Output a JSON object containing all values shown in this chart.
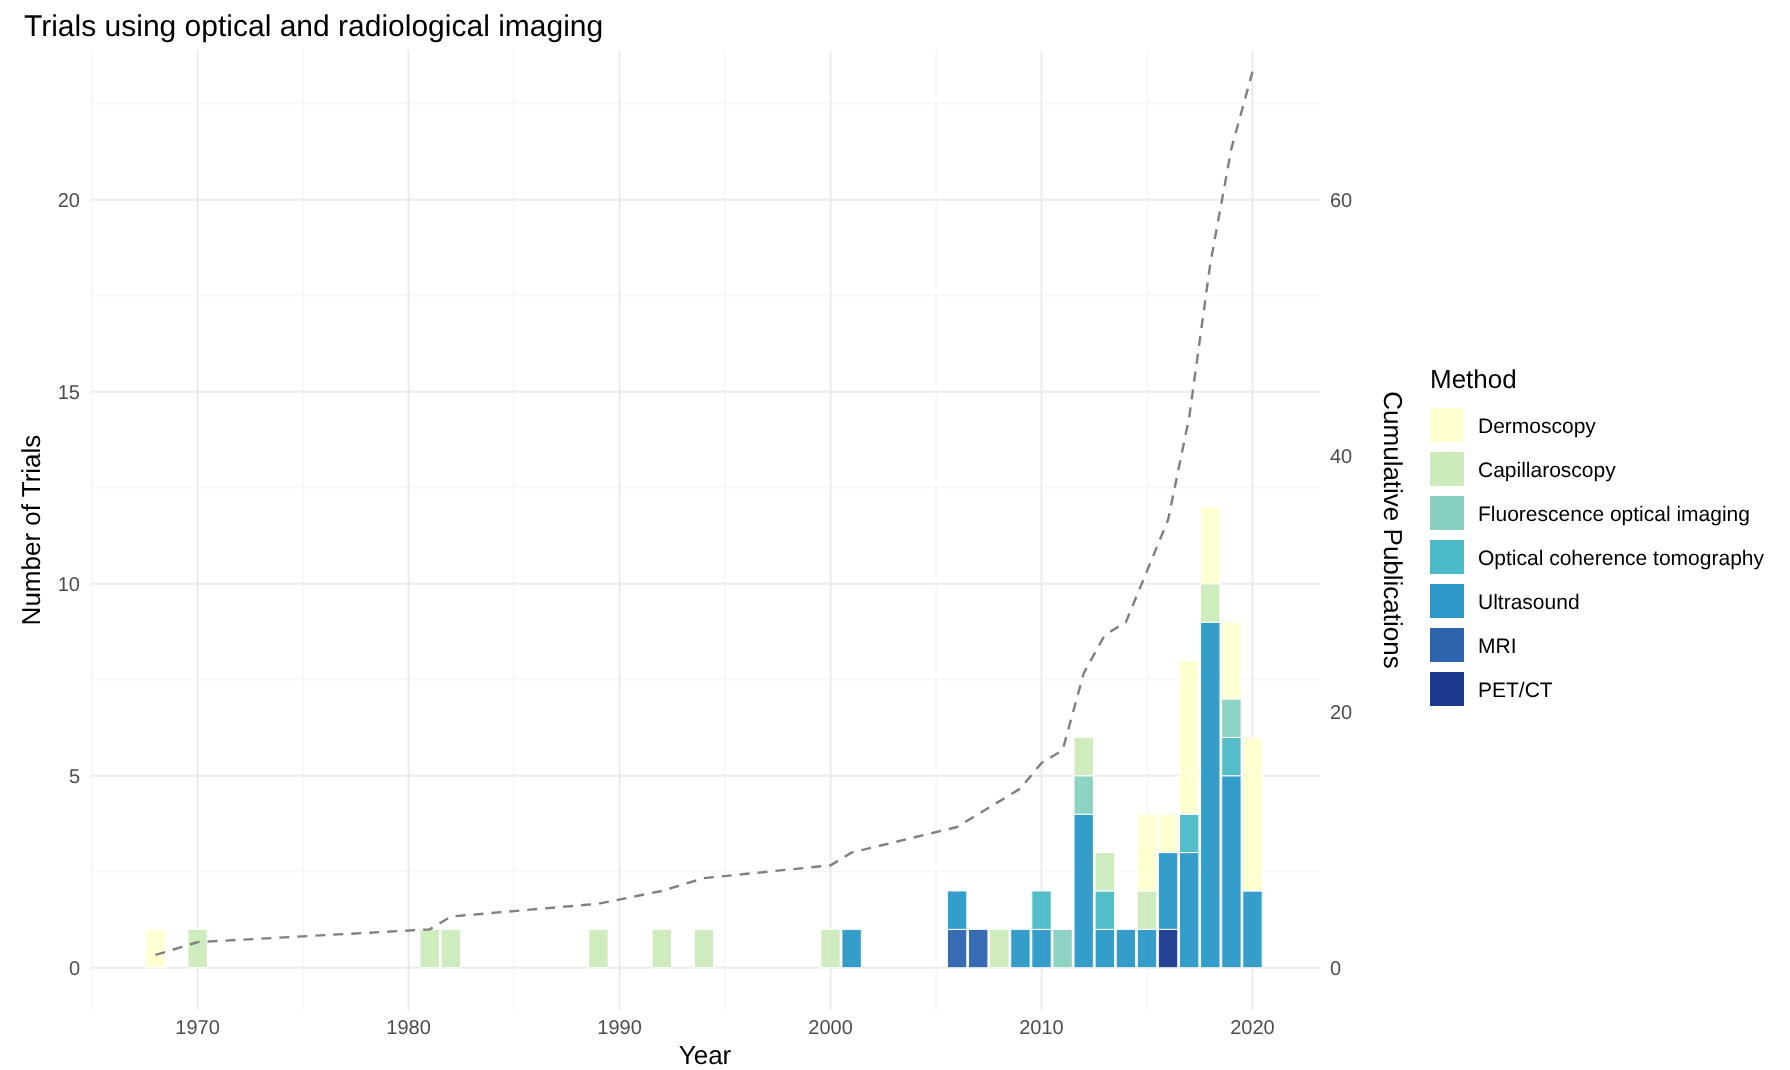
{
  "chart_data": {
    "type": "bar",
    "stacked": true,
    "title": "Trials using optical and radiological imaging",
    "xlabel": "Year",
    "ylabel": "Number of Trials",
    "y2label": "Cumulative Publications",
    "legend_title": "Method",
    "legend": "right",
    "grid": true,
    "x": [
      1968,
      1970,
      1981,
      1982,
      1989,
      1992,
      1994,
      2000,
      2001,
      2006,
      2007,
      2008,
      2009,
      2010,
      2011,
      2012,
      2013,
      2014,
      2015,
      2016,
      2017,
      2018,
      2019,
      2020
    ],
    "xlim": [
      1964.9,
      2023.2
    ],
    "xticks": [
      1970,
      1980,
      1990,
      2000,
      2010,
      2020
    ],
    "ylim": [
      -1.1,
      23.9
    ],
    "yticks": [
      0,
      5,
      10,
      15,
      20
    ],
    "y2lim": [
      -3.3,
      71.7
    ],
    "y2ticks": [
      0,
      20,
      40,
      60
    ],
    "series": [
      {
        "name": "PET/CT",
        "color": "#1a3a8e",
        "values": [
          0,
          0,
          0,
          0,
          0,
          0,
          0,
          0,
          0,
          0,
          0,
          0,
          0,
          0,
          0,
          0,
          0,
          0,
          0,
          1,
          0,
          0,
          0,
          0
        ]
      },
      {
        "name": "MRI",
        "color": "#2d64ae",
        "values": [
          0,
          0,
          0,
          0,
          0,
          0,
          0,
          0,
          0,
          1,
          1,
          0,
          0,
          0,
          0,
          0,
          0,
          0,
          0,
          0,
          0,
          0,
          0,
          0
        ]
      },
      {
        "name": "Ultrasound",
        "color": "#2b98c8",
        "values": [
          0,
          0,
          0,
          0,
          0,
          0,
          0,
          0,
          1,
          1,
          0,
          0,
          1,
          1,
          0,
          4,
          1,
          1,
          1,
          2,
          3,
          9,
          5,
          2
        ]
      },
      {
        "name": "Optical coherence tomography",
        "color": "#4bbac8",
        "values": [
          0,
          0,
          0,
          0,
          0,
          0,
          0,
          0,
          0,
          0,
          0,
          0,
          0,
          1,
          0,
          0,
          1,
          0,
          0,
          0,
          1,
          0,
          1,
          0
        ]
      },
      {
        "name": "Fluorescence optical imaging",
        "color": "#88d0c0",
        "values": [
          0,
          0,
          0,
          0,
          0,
          0,
          0,
          0,
          0,
          0,
          0,
          0,
          0,
          0,
          1,
          1,
          0,
          0,
          0,
          0,
          0,
          0,
          1,
          0
        ]
      },
      {
        "name": "Capillaroscopy",
        "color": "#cdebbb",
        "values": [
          0,
          1,
          1,
          1,
          1,
          1,
          1,
          1,
          0,
          0,
          0,
          1,
          0,
          0,
          0,
          1,
          1,
          0,
          1,
          0,
          0,
          1,
          0,
          0
        ]
      },
      {
        "name": "Dermoscopy",
        "color": "#ffffd0",
        "values": [
          1,
          0,
          0,
          0,
          0,
          0,
          0,
          0,
          0,
          0,
          0,
          0,
          0,
          0,
          0,
          0,
          0,
          0,
          2,
          1,
          4,
          2,
          2,
          4
        ]
      },
      {
        "type": "line",
        "axis": "y2",
        "color": "#808080",
        "line_style": "dashed",
        "x": [
          1968,
          1970,
          1981,
          1982,
          1989,
          1992,
          1994,
          2000,
          2001,
          2006,
          2007,
          2008,
          2009,
          2010,
          2011,
          2012,
          2013,
          2014,
          2015,
          2016,
          2017,
          2018,
          2019,
          2020
        ],
        "values": [
          1,
          2,
          3,
          4,
          5,
          6,
          7,
          8,
          9,
          11,
          12,
          13,
          14,
          16,
          17,
          23,
          26,
          27,
          31,
          35,
          43,
          55,
          64,
          70
        ]
      }
    ]
  }
}
